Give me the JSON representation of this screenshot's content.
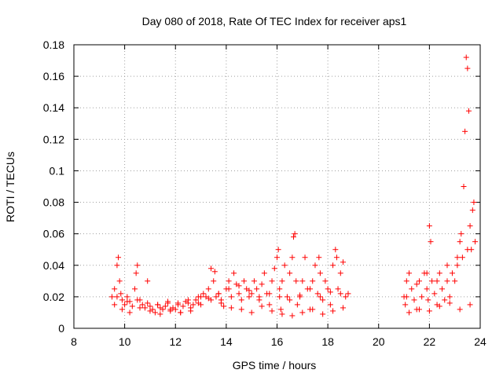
{
  "chart_data": {
    "type": "scatter",
    "title": "Day 080 of 2018, Rate Of TEC Index for receiver aps1",
    "xlabel": "GPS time / hours",
    "ylabel": "ROTI / TECUs",
    "xlim": [
      8,
      24
    ],
    "ylim": [
      0,
      0.18
    ],
    "xticks": [
      "8",
      "10",
      "12",
      "14",
      "16",
      "18",
      "20",
      "22",
      "24"
    ],
    "yticks": [
      "0",
      "0.02",
      "0.04",
      "0.06",
      "0.08",
      "0.1",
      "0.12",
      "0.14",
      "0.16",
      "0.18"
    ],
    "grid": true,
    "marker": "+",
    "color": "#ff0000",
    "axis_color": "#000000",
    "series": [
      {
        "name": "ROTI",
        "x": [
          9.5,
          9.6,
          9.7,
          9.75,
          9.8,
          9.85,
          9.9,
          10.0,
          10.1,
          10.2,
          10.3,
          10.4,
          10.45,
          10.5,
          10.6,
          10.7,
          10.8,
          10.9,
          11.0,
          11.1,
          11.2,
          11.3,
          11.4,
          11.5,
          11.6,
          11.7,
          11.8,
          11.9,
          12.0,
          12.1,
          12.2,
          12.3,
          12.4,
          12.5,
          12.6,
          12.7,
          12.8,
          12.9,
          13.0,
          13.1,
          13.2,
          13.3,
          13.4,
          13.5,
          13.55,
          13.6,
          13.7,
          13.8,
          13.9,
          14.0,
          14.1,
          14.2,
          14.3,
          14.4,
          14.5,
          14.6,
          14.7,
          14.8,
          14.9,
          15.0,
          15.1,
          15.2,
          15.3,
          15.4,
          15.5,
          15.6,
          15.7,
          15.8,
          15.9,
          16.0,
          16.05,
          16.1,
          16.15,
          16.2,
          16.3,
          16.4,
          16.5,
          16.6,
          16.65,
          16.7,
          16.75,
          16.8,
          16.9,
          17.0,
          17.1,
          17.2,
          17.3,
          17.4,
          17.5,
          17.6,
          17.65,
          17.7,
          17.8,
          17.9,
          18.0,
          18.1,
          18.2,
          18.3,
          18.35,
          18.4,
          18.5,
          18.6,
          18.7,
          18.8,
          21.0,
          21.05,
          21.1,
          21.2,
          21.3,
          21.4,
          21.5,
          21.6,
          21.7,
          21.8,
          21.9,
          21.95,
          22.0,
          22.05,
          22.1,
          22.2,
          22.3,
          22.4,
          22.5,
          22.6,
          22.7,
          22.8,
          22.9,
          23.0,
          23.1,
          23.2,
          23.25,
          23.3,
          23.35,
          23.4,
          23.45,
          23.5,
          23.55,
          23.6,
          23.65,
          23.7,
          23.75,
          23.8,
          9.6,
          9.9,
          10.2,
          10.6,
          11.0,
          11.4,
          11.8,
          12.2,
          12.6,
          13.0,
          13.4,
          13.8,
          14.2,
          14.6,
          15.0,
          15.4,
          15.8,
          16.2,
          16.6,
          17.0,
          17.4,
          17.8,
          18.2,
          18.6,
          21.2,
          21.6,
          22.0,
          22.4,
          22.8,
          23.2,
          23.6,
          9.7,
          10.1,
          10.5,
          10.9,
          11.3,
          11.7,
          12.1,
          12.5,
          12.9,
          13.3,
          13.7,
          14.1,
          14.5,
          14.9,
          15.3,
          15.7,
          16.1,
          16.5,
          16.9,
          17.3,
          17.7,
          18.1,
          18.5,
          21.1,
          21.5,
          21.9,
          22.3,
          22.7,
          23.1,
          23.5
        ],
        "y": [
          0.02,
          0.025,
          0.04,
          0.045,
          0.03,
          0.022,
          0.018,
          0.015,
          0.02,
          0.017,
          0.014,
          0.025,
          0.035,
          0.04,
          0.018,
          0.015,
          0.013,
          0.03,
          0.014,
          0.012,
          0.01,
          0.015,
          0.013,
          0.012,
          0.014,
          0.016,
          0.011,
          0.013,
          0.012,
          0.015,
          0.01,
          0.014,
          0.017,
          0.016,
          0.013,
          0.015,
          0.018,
          0.016,
          0.02,
          0.022,
          0.02,
          0.025,
          0.038,
          0.03,
          0.036,
          0.02,
          0.022,
          0.018,
          0.014,
          0.025,
          0.03,
          0.02,
          0.035,
          0.028,
          0.022,
          0.018,
          0.03,
          0.025,
          0.02,
          0.022,
          0.03,
          0.025,
          0.018,
          0.028,
          0.035,
          0.022,
          0.015,
          0.03,
          0.038,
          0.045,
          0.05,
          0.025,
          0.012,
          0.03,
          0.04,
          0.02,
          0.035,
          0.045,
          0.058,
          0.06,
          0.03,
          0.015,
          0.02,
          0.03,
          0.045,
          0.025,
          0.012,
          0.03,
          0.04,
          0.022,
          0.045,
          0.035,
          0.018,
          0.03,
          0.025,
          0.015,
          0.04,
          0.05,
          0.045,
          0.025,
          0.035,
          0.042,
          0.02,
          0.022,
          0.02,
          0.015,
          0.03,
          0.035,
          0.025,
          0.018,
          0.012,
          0.03,
          0.02,
          0.035,
          0.025,
          0.018,
          0.065,
          0.055,
          0.03,
          0.022,
          0.015,
          0.035,
          0.025,
          0.018,
          0.03,
          0.02,
          0.035,
          0.03,
          0.04,
          0.055,
          0.06,
          0.045,
          0.09,
          0.125,
          0.172,
          0.165,
          0.138,
          0.065,
          0.05,
          0.075,
          0.08,
          0.055,
          0.015,
          0.012,
          0.01,
          0.013,
          0.011,
          0.009,
          0.012,
          0.01,
          0.011,
          0.015,
          0.018,
          0.016,
          0.013,
          0.012,
          0.01,
          0.014,
          0.011,
          0.009,
          0.008,
          0.01,
          0.012,
          0.009,
          0.011,
          0.013,
          0.01,
          0.012,
          0.011,
          0.014,
          0.016,
          0.012,
          0.015,
          0.02,
          0.017,
          0.018,
          0.016,
          0.015,
          0.017,
          0.016,
          0.018,
          0.02,
          0.019,
          0.022,
          0.025,
          0.027,
          0.024,
          0.02,
          0.022,
          0.02,
          0.018,
          0.021,
          0.025,
          0.02,
          0.023,
          0.022,
          0.02,
          0.028,
          0.035,
          0.03,
          0.04,
          0.045,
          0.05
        ]
      }
    ]
  }
}
